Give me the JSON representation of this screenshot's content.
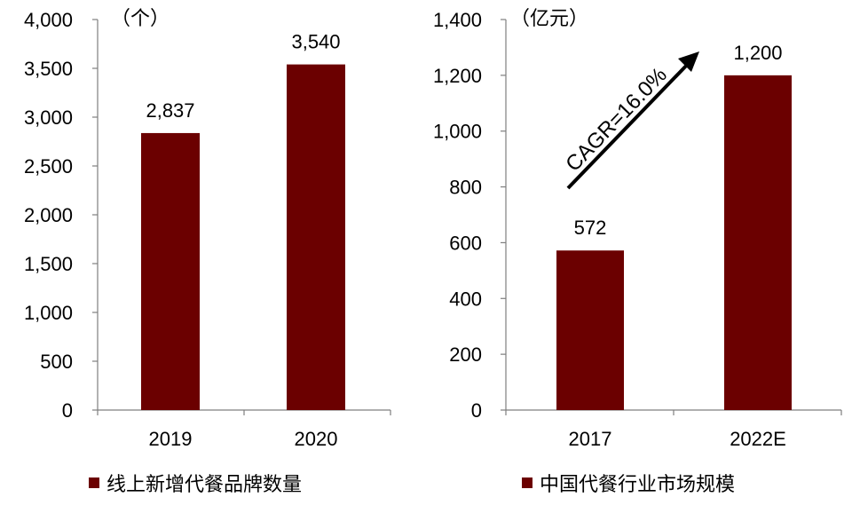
{
  "chart_data": [
    {
      "type": "bar",
      "unit_label": "（个）",
      "categories": [
        "2019",
        "2020"
      ],
      "series": [
        {
          "name": "线上新增代餐品牌数量",
          "values": [
            2837,
            3540
          ],
          "value_labels": [
            "2,837",
            "3,540"
          ],
          "color": "#6b0000"
        }
      ],
      "ylim": [
        0,
        4000
      ],
      "yticks": [
        "0",
        "500",
        "1,000",
        "1,500",
        "2,000",
        "2,500",
        "3,000",
        "3,500",
        "4,000"
      ],
      "ytick_values": [
        0,
        500,
        1000,
        1500,
        2000,
        2500,
        3000,
        3500,
        4000
      ],
      "grid": false,
      "legend": "bottom"
    },
    {
      "type": "bar",
      "unit_label": "（亿元）",
      "categories": [
        "2017",
        "2022E"
      ],
      "series": [
        {
          "name": "中国代餐行业市场规模",
          "values": [
            572,
            1200
          ],
          "value_labels": [
            "572",
            "1,200"
          ],
          "color": "#6b0000"
        }
      ],
      "ylim": [
        0,
        1400
      ],
      "yticks": [
        "0",
        "200",
        "400",
        "600",
        "800",
        "1,000",
        "1,200",
        "1,400"
      ],
      "ytick_values": [
        0,
        200,
        400,
        600,
        800,
        1000,
        1200,
        1400
      ],
      "annotation": "CAGR=16.0%",
      "grid": false,
      "legend": "bottom"
    }
  ]
}
